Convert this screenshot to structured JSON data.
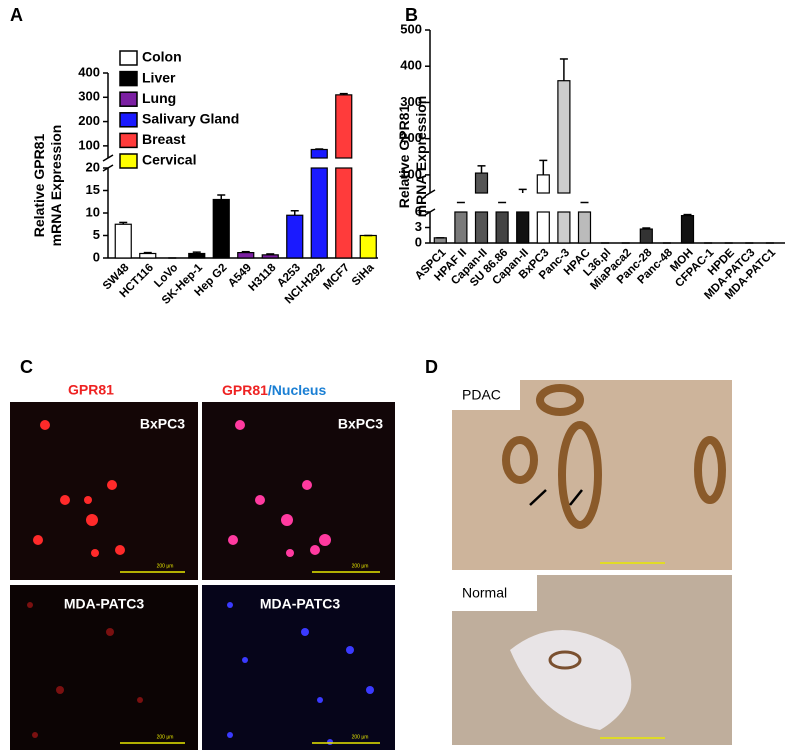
{
  "chart_data": [
    {
      "type": "bar",
      "panel_label": "A",
      "ylabel": [
        "Relative GPR81",
        "mRNA Expression"
      ],
      "categories": [
        "SW48",
        "HCT116",
        "LoVo",
        "SK-Hep-1",
        "Hep G2",
        "A549",
        "H3118",
        "A253",
        "NCI-H292",
        "MCF7",
        "SiHa"
      ],
      "values": [
        7.5,
        1,
        0,
        1,
        13,
        1.2,
        0.7,
        9.5,
        85,
        310,
        5
      ],
      "errors": [
        0.4,
        0.2,
        0,
        0.3,
        1,
        0.2,
        0.2,
        1,
        2,
        5,
        0
      ],
      "colors": [
        "#ffffff",
        "#ffffff",
        "#ffffff",
        "#000000",
        "#000000",
        "#7b1fa2",
        "#7b1fa2",
        "#1a1aff",
        "#1a1aff",
        "#ff3b3b",
        "#ffff00"
      ],
      "legend": [
        {
          "name": "Colon",
          "color": "#ffffff"
        },
        {
          "name": "Liver",
          "color": "#000000"
        },
        {
          "name": "Lung",
          "color": "#7b1fa2"
        },
        {
          "name": "Salivary Gland",
          "color": "#1a1aff"
        },
        {
          "name": "Breast",
          "color": "#ff3b3b"
        },
        {
          "name": "Cervical",
          "color": "#ffff00"
        }
      ],
      "ylim": [
        0,
        400
      ],
      "ybreak": [
        20,
        50
      ],
      "yticks": [
        0,
        5,
        10,
        15,
        20,
        100,
        200,
        300,
        400
      ]
    },
    {
      "type": "bar",
      "panel_label": "B",
      "ylabel": [
        "Relative GPR81",
        "mRNA Expression"
      ],
      "categories": [
        "ASPC1",
        "HPAF II",
        "Capan-II",
        "SU 86.86",
        "Capan-II",
        "BxPC3",
        "Panc-3",
        "HPAC",
        "L36.pl",
        "MiaPaca2",
        "Panc-28",
        "Panc-48",
        "MOH",
        "CFPAC-1",
        "HPDE",
        "MDA-PATC3",
        "MDA-PATC1"
      ],
      "values": [
        1,
        35,
        105,
        25,
        50,
        100,
        360,
        35,
        0,
        0,
        2.7,
        0,
        5.3,
        0,
        0,
        0,
        0
      ],
      "errors": [
        0,
        10,
        20,
        5,
        10,
        40,
        60,
        10,
        0,
        0,
        0.2,
        0,
        0.2,
        0,
        0,
        0,
        0
      ],
      "colors": [
        "#8a8a8a",
        "#7a7a7a",
        "#555555",
        "#444444",
        "#111111",
        "#ffffff",
        "#cccccc",
        "#bbbbbb",
        "#333333",
        "#333333",
        "#333333",
        "#333333",
        "#111111",
        "#333333",
        "#333333",
        "#333333",
        "#333333"
      ],
      "ylim": [
        0,
        500
      ],
      "ybreak": [
        6,
        50
      ],
      "yticks": [
        0,
        3,
        6,
        100,
        200,
        300,
        400,
        500
      ]
    }
  ],
  "panel_c": {
    "panel_label": "C",
    "header_left": "GPR81",
    "header_right": [
      "GPR81",
      "/Nucleus"
    ],
    "cells": [
      {
        "label": "BxPC3",
        "scale": "200 µm"
      },
      {
        "label": "BxPC3",
        "scale": "200 µm"
      },
      {
        "label": "MDA-PATC3",
        "scale": "200 µm"
      },
      {
        "label": "MDA-PATC3",
        "scale": "200 µm"
      }
    ]
  },
  "panel_d": {
    "panel_label": "D",
    "images": [
      {
        "label": "PDAC"
      },
      {
        "label": "Normal"
      }
    ]
  }
}
